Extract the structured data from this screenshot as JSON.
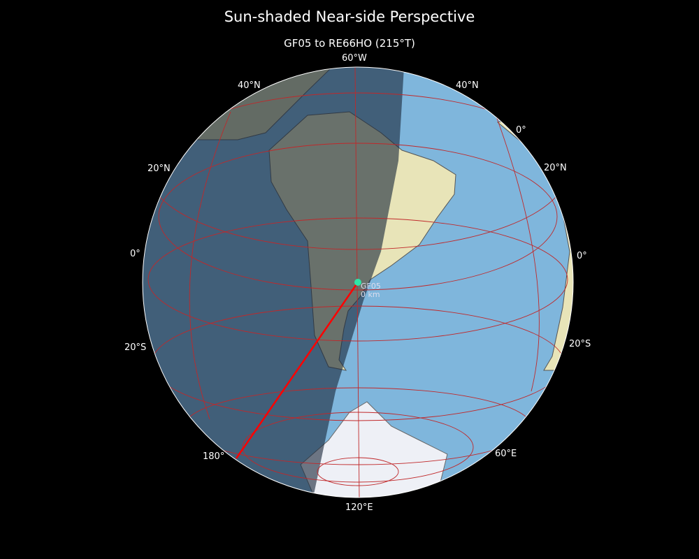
{
  "title": "Sun-shaded Near-side Perspective",
  "subtitle": "GF05 to RE66HO (215°T)",
  "projection": "near-side perspective",
  "colors": {
    "background": "#000000",
    "ocean": "#7fb6dc",
    "land": "#e8e4b8",
    "night_overlay": "#1c2a3c",
    "graticule": "#c0282a",
    "path": "#ff0000",
    "marker": "#2ee6a6"
  },
  "graticule_labels": {
    "top": "60°W",
    "n40_left": "40°N",
    "n40_right": "40°N",
    "zero_right_top": "0°",
    "n20_left": "20°N",
    "n20_right": "20°N",
    "eq_left": "0°",
    "eq_right": "0°",
    "s20_left": "20°S",
    "s20_right": "20°S",
    "lon180": "180°",
    "lon60e": "60°E",
    "lon120e": "120°E"
  },
  "marker": {
    "name": "GF05",
    "distance": "0 km"
  }
}
